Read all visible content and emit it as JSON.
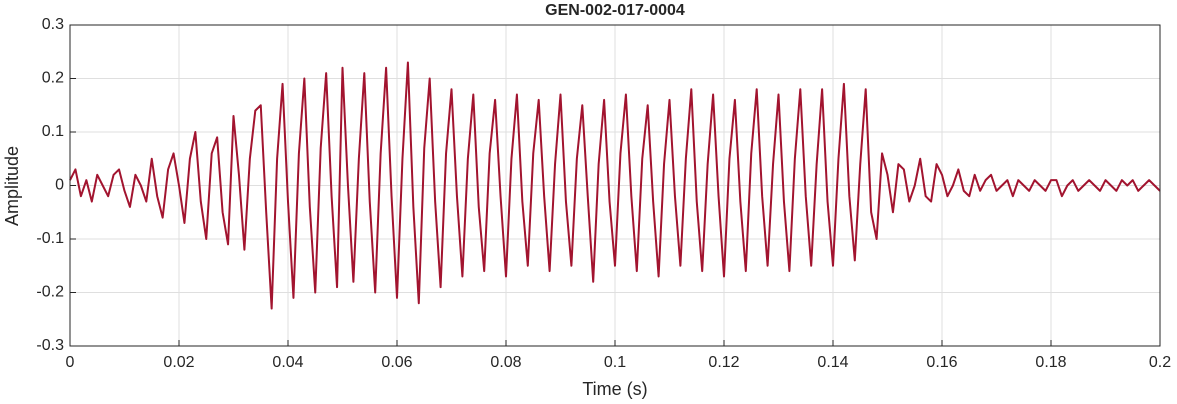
{
  "chart_data": {
    "type": "line",
    "title": "GEN-002-017-0004",
    "xlabel": "Time (s)",
    "ylabel": "Amplitude",
    "xlim": [
      0,
      0.2
    ],
    "ylim": [
      -0.3,
      0.3
    ],
    "xticks": [
      0,
      0.02,
      0.04,
      0.06,
      0.08,
      0.1,
      0.12,
      0.14,
      0.16,
      0.18,
      0.2
    ],
    "yticks": [
      -0.3,
      -0.2,
      -0.1,
      0,
      0.1,
      0.2,
      0.3
    ],
    "grid": true,
    "x": [
      0,
      0.001,
      0.002,
      0.003,
      0.004,
      0.005,
      0.006,
      0.007,
      0.008,
      0.009,
      0.01,
      0.011,
      0.012,
      0.013,
      0.014,
      0.015,
      0.016,
      0.017,
      0.018,
      0.019,
      0.02,
      0.021,
      0.022,
      0.023,
      0.024,
      0.025,
      0.026,
      0.027,
      0.028,
      0.029,
      0.03,
      0.031,
      0.032,
      0.033,
      0.034,
      0.035,
      0.036,
      0.037,
      0.038,
      0.039,
      0.04,
      0.041,
      0.042,
      0.043,
      0.044,
      0.045,
      0.046,
      0.047,
      0.048,
      0.049,
      0.05,
      0.051,
      0.052,
      0.053,
      0.054,
      0.055,
      0.056,
      0.057,
      0.058,
      0.059,
      0.06,
      0.061,
      0.062,
      0.063,
      0.064,
      0.065,
      0.066,
      0.067,
      0.068,
      0.069,
      0.07,
      0.071,
      0.072,
      0.073,
      0.074,
      0.075,
      0.076,
      0.077,
      0.078,
      0.079,
      0.08,
      0.081,
      0.082,
      0.083,
      0.084,
      0.085,
      0.086,
      0.087,
      0.088,
      0.089,
      0.09,
      0.091,
      0.092,
      0.093,
      0.094,
      0.095,
      0.096,
      0.097,
      0.098,
      0.099,
      0.1,
      0.101,
      0.102,
      0.103,
      0.104,
      0.105,
      0.106,
      0.107,
      0.108,
      0.109,
      0.11,
      0.111,
      0.112,
      0.113,
      0.114,
      0.115,
      0.116,
      0.117,
      0.118,
      0.119,
      0.12,
      0.121,
      0.122,
      0.123,
      0.124,
      0.125,
      0.126,
      0.127,
      0.128,
      0.129,
      0.13,
      0.131,
      0.132,
      0.133,
      0.134,
      0.135,
      0.136,
      0.137,
      0.138,
      0.139,
      0.14,
      0.141,
      0.142,
      0.143,
      0.144,
      0.145,
      0.146,
      0.147,
      0.148,
      0.149,
      0.15,
      0.151,
      0.152,
      0.153,
      0.154,
      0.155,
      0.156,
      0.157,
      0.158,
      0.159,
      0.16,
      0.161,
      0.162,
      0.163,
      0.164,
      0.165,
      0.166,
      0.167,
      0.168,
      0.169,
      0.17,
      0.171,
      0.172,
      0.173,
      0.174,
      0.175,
      0.176,
      0.177,
      0.178,
      0.179,
      0.18,
      0.181,
      0.182,
      0.183,
      0.184,
      0.185,
      0.186,
      0.187,
      0.188,
      0.189,
      0.19,
      0.191,
      0.192,
      0.193,
      0.194,
      0.195,
      0.196,
      0.197,
      0.198,
      0.199,
      0.2
    ],
    "series": [
      {
        "color": "#a2142f",
        "values": [
          0.01,
          0.03,
          -0.02,
          0.01,
          -0.03,
          0.02,
          0.0,
          -0.02,
          0.02,
          0.03,
          -0.01,
          -0.04,
          0.02,
          0.0,
          -0.03,
          0.05,
          -0.02,
          -0.06,
          0.03,
          0.06,
          0.0,
          -0.07,
          0.05,
          0.1,
          -0.03,
          -0.1,
          0.06,
          0.09,
          -0.05,
          -0.11,
          0.13,
          0.02,
          -0.12,
          0.05,
          0.14,
          0.15,
          -0.05,
          -0.23,
          0.05,
          0.19,
          -0.03,
          -0.21,
          0.06,
          0.2,
          -0.04,
          -0.2,
          0.07,
          0.21,
          -0.02,
          -0.19,
          0.22,
          0.0,
          -0.18,
          0.05,
          0.21,
          -0.03,
          -0.2,
          0.06,
          0.22,
          -0.02,
          -0.21,
          0.05,
          0.23,
          -0.04,
          -0.22,
          0.07,
          0.2,
          -0.03,
          -0.19,
          0.06,
          0.18,
          -0.02,
          -0.17,
          0.05,
          0.17,
          -0.04,
          -0.16,
          0.06,
          0.16,
          -0.02,
          -0.17,
          0.05,
          0.17,
          -0.03,
          -0.15,
          0.06,
          0.16,
          -0.02,
          -0.16,
          0.04,
          0.17,
          -0.03,
          -0.15,
          0.05,
          0.15,
          -0.02,
          -0.18,
          0.04,
          0.16,
          -0.03,
          -0.15,
          0.06,
          0.17,
          -0.02,
          -0.16,
          0.05,
          0.15,
          -0.03,
          -0.17,
          0.04,
          0.16,
          -0.02,
          -0.15,
          0.05,
          0.18,
          -0.03,
          -0.16,
          0.04,
          0.17,
          -0.02,
          -0.17,
          0.05,
          0.16,
          -0.03,
          -0.16,
          0.06,
          0.18,
          -0.02,
          -0.15,
          0.04,
          0.17,
          -0.03,
          -0.16,
          0.05,
          0.18,
          -0.02,
          -0.15,
          0.04,
          0.18,
          -0.03,
          -0.15,
          0.05,
          0.19,
          -0.02,
          -0.14,
          0.04,
          0.18,
          -0.05,
          -0.1,
          0.06,
          0.02,
          -0.05,
          0.04,
          0.03,
          -0.03,
          0.0,
          0.05,
          -0.02,
          -0.03,
          0.04,
          0.02,
          -0.02,
          0.0,
          0.03,
          -0.01,
          -0.02,
          0.02,
          -0.01,
          0.01,
          0.02,
          -0.01,
          0.0,
          0.01,
          -0.02,
          0.01,
          0.0,
          -0.01,
          0.01,
          0.0,
          -0.01,
          0.01,
          0.01,
          -0.02,
          0.0,
          0.01,
          -0.01,
          0.0,
          0.01,
          0.0,
          -0.01,
          0.01,
          0.0,
          -0.01,
          0.01,
          0.0,
          0.01,
          -0.01,
          0.0,
          0.01,
          0.0,
          -0.01
        ]
      }
    ]
  }
}
